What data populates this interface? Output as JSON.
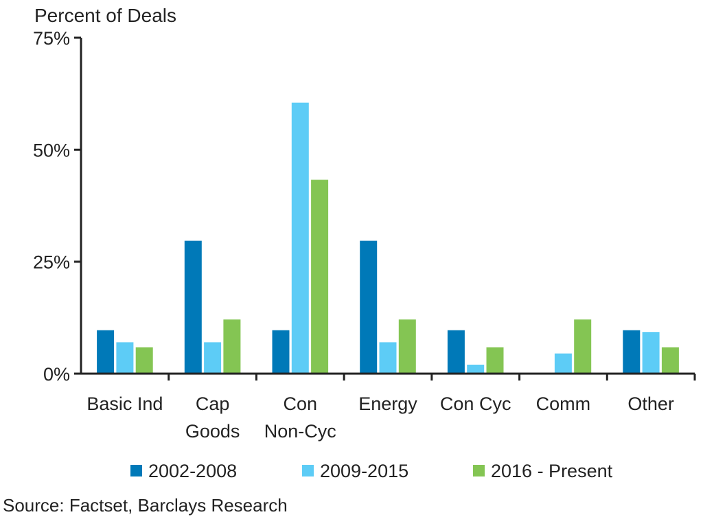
{
  "chart_data": {
    "type": "bar",
    "ylabel": "Percent of Deals",
    "ylim": [
      0,
      75
    ],
    "yticks": [
      0,
      25,
      50,
      75
    ],
    "ytick_labels": [
      "0%",
      "25%",
      "50%",
      "75%"
    ],
    "categories": [
      [
        "Basic Ind"
      ],
      [
        "Cap",
        "Goods"
      ],
      [
        "Con",
        "Non-Cyc"
      ],
      [
        "Energy"
      ],
      [
        "Con Cyc"
      ],
      [
        "Comm"
      ],
      [
        "Other"
      ]
    ],
    "series": [
      {
        "name": "2002-2008",
        "color": "#0079B8",
        "values": [
          9.7,
          29.7,
          9.7,
          29.7,
          9.7,
          0,
          9.7
        ]
      },
      {
        "name": "2009-2015",
        "color": "#5DCCF6",
        "values": [
          7,
          7,
          60.5,
          7,
          2,
          4.5,
          9.3
        ]
      },
      {
        "name": "2016 - Present",
        "color": "#84C553",
        "values": [
          5.9,
          12.1,
          43.3,
          12.1,
          5.9,
          12.1,
          5.9
        ]
      }
    ],
    "legend": "bottom",
    "grid": false
  },
  "source": "Source: Factset, Barclays Research"
}
